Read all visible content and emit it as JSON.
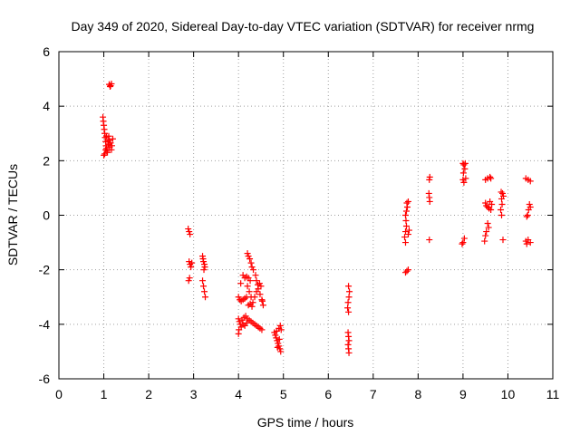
{
  "chart_data": {
    "type": "scatter",
    "title": "Day 349 of 2020, Sidereal Day-to-day VTEC variation (SDTVAR) for receiver nrmg",
    "xlabel": "GPS time / hours",
    "ylabel": "SDTVAR / TECUs",
    "xlim": [
      0,
      11
    ],
    "ylim": [
      -6,
      6
    ],
    "xticks": [
      0,
      1,
      2,
      3,
      4,
      5,
      6,
      7,
      8,
      9,
      10,
      11
    ],
    "yticks": [
      -6,
      -4,
      -2,
      0,
      2,
      4,
      6
    ],
    "grid": true,
    "marker": "+",
    "color": "#ff0000",
    "series": [
      {
        "name": "SDTVAR",
        "points": [
          [
            1.12,
            4.8
          ],
          [
            1.15,
            4.75
          ],
          [
            1.17,
            4.82
          ],
          [
            1.14,
            4.72
          ],
          [
            0.98,
            3.6
          ],
          [
            0.99,
            3.45
          ],
          [
            1.0,
            3.3
          ],
          [
            1.01,
            3.15
          ],
          [
            1.02,
            3.0
          ],
          [
            1.03,
            2.85
          ],
          [
            1.04,
            2.7
          ],
          [
            1.05,
            2.55
          ],
          [
            1.06,
            2.45
          ],
          [
            1.07,
            2.35
          ],
          [
            1.08,
            2.3
          ],
          [
            1.0,
            2.2
          ],
          [
            1.02,
            2.25
          ],
          [
            1.04,
            2.4
          ],
          [
            1.1,
            2.6
          ],
          [
            1.12,
            2.75
          ],
          [
            1.15,
            2.65
          ],
          [
            1.18,
            2.55
          ],
          [
            1.2,
            2.8
          ],
          [
            1.17,
            2.4
          ],
          [
            1.13,
            2.5
          ],
          [
            1.09,
            2.7
          ],
          [
            1.06,
            2.9
          ],
          [
            1.11,
            2.9
          ],
          [
            2.88,
            -0.5
          ],
          [
            2.9,
            -0.6
          ],
          [
            2.92,
            -0.7
          ],
          [
            2.9,
            -1.7
          ],
          [
            2.92,
            -1.8
          ],
          [
            2.94,
            -1.9
          ],
          [
            2.96,
            -1.75
          ],
          [
            2.91,
            -2.3
          ],
          [
            2.89,
            -2.4
          ],
          [
            3.2,
            -1.5
          ],
          [
            3.21,
            -1.6
          ],
          [
            3.22,
            -1.7
          ],
          [
            3.24,
            -1.8
          ],
          [
            3.25,
            -1.9
          ],
          [
            3.23,
            -2.0
          ],
          [
            3.2,
            -2.4
          ],
          [
            3.22,
            -2.6
          ],
          [
            3.24,
            -2.8
          ],
          [
            3.26,
            -3.0
          ],
          [
            4.2,
            -1.4
          ],
          [
            4.22,
            -1.5
          ],
          [
            4.25,
            -1.6
          ],
          [
            4.28,
            -1.75
          ],
          [
            4.3,
            -1.9
          ],
          [
            4.33,
            -2.0
          ],
          [
            4.1,
            -2.2
          ],
          [
            4.14,
            -2.3
          ],
          [
            4.18,
            -2.25
          ],
          [
            4.22,
            -2.3
          ],
          [
            4.26,
            -2.4
          ],
          [
            4.05,
            -2.5
          ],
          [
            4.38,
            -2.2
          ],
          [
            4.4,
            -2.4
          ],
          [
            4.43,
            -2.55
          ],
          [
            4.47,
            -2.5
          ],
          [
            4.5,
            -2.6
          ],
          [
            4.2,
            -2.6
          ],
          [
            4.24,
            -2.8
          ],
          [
            4.28,
            -3.0
          ],
          [
            4.32,
            -3.2
          ],
          [
            4.36,
            -3.0
          ],
          [
            4.4,
            -2.8
          ],
          [
            4.44,
            -2.7
          ],
          [
            4.48,
            -2.9
          ],
          [
            4.52,
            -3.1
          ],
          [
            4.55,
            -3.3
          ],
          [
            4.53,
            -3.15
          ],
          [
            4.0,
            -3.0
          ],
          [
            4.03,
            -3.1
          ],
          [
            4.06,
            -3.15
          ],
          [
            4.1,
            -3.1
          ],
          [
            4.14,
            -3.05
          ],
          [
            4.18,
            -3.0
          ],
          [
            4.22,
            -3.3
          ],
          [
            4.26,
            -3.25
          ],
          [
            4.3,
            -3.35
          ],
          [
            4.0,
            -3.8
          ],
          [
            4.02,
            -3.9
          ],
          [
            4.04,
            -4.0
          ],
          [
            4.06,
            -4.1
          ],
          [
            4.01,
            -4.2
          ],
          [
            4.0,
            -4.35
          ],
          [
            4.08,
            -3.85
          ],
          [
            4.12,
            -3.75
          ],
          [
            4.16,
            -3.7
          ],
          [
            4.2,
            -3.8
          ],
          [
            4.24,
            -3.85
          ],
          [
            4.28,
            -3.9
          ],
          [
            4.32,
            -3.95
          ],
          [
            4.36,
            -4.0
          ],
          [
            4.4,
            -4.05
          ],
          [
            4.44,
            -4.1
          ],
          [
            4.48,
            -4.15
          ],
          [
            4.52,
            -4.2
          ],
          [
            4.1,
            -4.0
          ],
          [
            4.14,
            -4.05
          ],
          [
            4.18,
            -3.95
          ],
          [
            4.8,
            -4.3
          ],
          [
            4.82,
            -4.4
          ],
          [
            4.84,
            -4.5
          ],
          [
            4.86,
            -4.6
          ],
          [
            4.88,
            -4.7
          ],
          [
            4.9,
            -4.8
          ],
          [
            4.92,
            -4.9
          ],
          [
            4.94,
            -5.0
          ],
          [
            4.85,
            -4.25
          ],
          [
            4.9,
            -4.15
          ],
          [
            4.93,
            -4.05
          ],
          [
            4.95,
            -4.2
          ],
          [
            4.87,
            -4.85
          ],
          [
            4.91,
            -4.55
          ],
          [
            6.45,
            -2.6
          ],
          [
            6.47,
            -2.8
          ],
          [
            6.46,
            -3.0
          ],
          [
            6.44,
            -3.2
          ],
          [
            6.43,
            -3.4
          ],
          [
            6.45,
            -3.55
          ],
          [
            6.44,
            -4.3
          ],
          [
            6.45,
            -4.45
          ],
          [
            6.46,
            -4.6
          ],
          [
            6.44,
            -4.75
          ],
          [
            6.45,
            -4.9
          ],
          [
            6.46,
            -5.05
          ],
          [
            7.75,
            0.45
          ],
          [
            7.76,
            0.3
          ],
          [
            7.74,
            0.15
          ],
          [
            7.72,
            0.0
          ],
          [
            7.73,
            -0.2
          ],
          [
            7.74,
            -0.4
          ],
          [
            7.72,
            -0.6
          ],
          [
            7.7,
            -0.8
          ],
          [
            7.72,
            -1.0
          ],
          [
            7.78,
            0.5
          ],
          [
            7.8,
            -0.55
          ],
          [
            7.78,
            -0.7
          ],
          [
            7.75,
            -2.05
          ],
          [
            7.72,
            -2.1
          ],
          [
            7.78,
            -2.0
          ],
          [
            8.25,
            1.3
          ],
          [
            8.26,
            1.4
          ],
          [
            8.24,
            0.8
          ],
          [
            8.25,
            0.65
          ],
          [
            8.26,
            0.5
          ],
          [
            8.25,
            -0.9
          ],
          [
            9.0,
            1.9
          ],
          [
            9.02,
            1.85
          ],
          [
            9.04,
            1.7
          ],
          [
            9.01,
            1.55
          ],
          [
            9.0,
            1.3
          ],
          [
            9.02,
            1.2
          ],
          [
            9.05,
            1.9
          ],
          [
            9.06,
            1.35
          ],
          [
            8.98,
            -1.05
          ],
          [
            9.0,
            -1.0
          ],
          [
            9.03,
            -0.85
          ],
          [
            9.5,
            1.3
          ],
          [
            9.55,
            1.35
          ],
          [
            9.6,
            1.4
          ],
          [
            9.62,
            1.35
          ],
          [
            9.5,
            0.45
          ],
          [
            9.52,
            0.35
          ],
          [
            9.55,
            0.3
          ],
          [
            9.58,
            0.25
          ],
          [
            9.6,
            0.5
          ],
          [
            9.62,
            0.2
          ],
          [
            9.64,
            0.4
          ],
          [
            9.55,
            -0.3
          ],
          [
            9.57,
            -0.45
          ],
          [
            9.52,
            -0.6
          ],
          [
            9.5,
            -0.75
          ],
          [
            9.48,
            -0.95
          ],
          [
            9.85,
            0.85
          ],
          [
            9.88,
            0.8
          ],
          [
            9.9,
            0.7
          ],
          [
            9.86,
            0.6
          ],
          [
            9.87,
            0.4
          ],
          [
            9.84,
            0.2
          ],
          [
            9.86,
            0.0
          ],
          [
            9.89,
            -0.9
          ],
          [
            10.4,
            1.35
          ],
          [
            10.45,
            1.3
          ],
          [
            10.5,
            1.25
          ],
          [
            10.48,
            0.4
          ],
          [
            10.46,
            0.2
          ],
          [
            10.44,
            0.0
          ],
          [
            10.42,
            -0.05
          ],
          [
            10.5,
            0.3
          ],
          [
            10.4,
            -0.95
          ],
          [
            10.45,
            -0.9
          ],
          [
            10.5,
            -1.0
          ],
          [
            10.42,
            -1.05
          ]
        ]
      }
    ]
  }
}
